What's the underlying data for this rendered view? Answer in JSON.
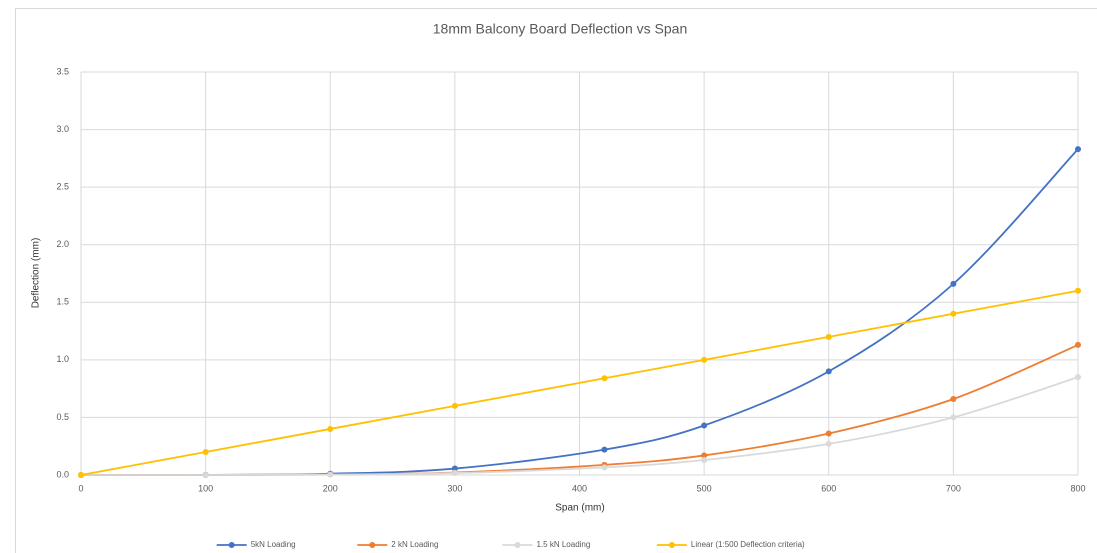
{
  "chart_data": {
    "type": "line",
    "title": "18mm Balcony Board Deflection vs Span",
    "x_label": "Span (mm)",
    "y_label": "Deflection (mm)",
    "x": [
      0,
      100,
      200,
      300,
      420,
      500,
      600,
      700,
      800
    ],
    "series": [
      {
        "name": "5kN Loading",
        "color": "#4472c4",
        "values": [
          0,
          0.001,
          0.011,
          0.056,
          0.22,
          0.43,
          0.9,
          1.66,
          2.83
        ]
      },
      {
        "name": "2 kN Loading",
        "color": "#ed7d31",
        "values": [
          0,
          0.0003,
          0.004,
          0.022,
          0.088,
          0.17,
          0.36,
          0.66,
          1.13
        ]
      },
      {
        "name": "1.5 kN Loading",
        "color": "#d9d9d9",
        "values": [
          0,
          0.0002,
          0.003,
          0.017,
          0.066,
          0.13,
          0.27,
          0.5,
          0.85
        ]
      },
      {
        "name": "Linear (1:500 Deflection criteria)",
        "color": "#ffc000",
        "values": [
          0,
          0.2,
          0.4,
          0.6,
          0.84,
          1.0,
          1.2,
          1.4,
          1.6
        ]
      }
    ],
    "xlim": [
      0,
      800
    ],
    "xticks": [
      0,
      100,
      200,
      300,
      400,
      500,
      600,
      700,
      800
    ],
    "ylim": [
      0,
      3.5
    ],
    "yticks": [
      {
        "value": 0,
        "label": "0.0"
      },
      0.5,
      {
        "value": 1,
        "label": "1.0"
      },
      1.5,
      {
        "value": 2,
        "label": "2.0"
      },
      2.5,
      {
        "value": 3,
        "label": "3.0"
      },
      3.5
    ],
    "grid": true,
    "smooth": true,
    "legend": "bottom"
  }
}
